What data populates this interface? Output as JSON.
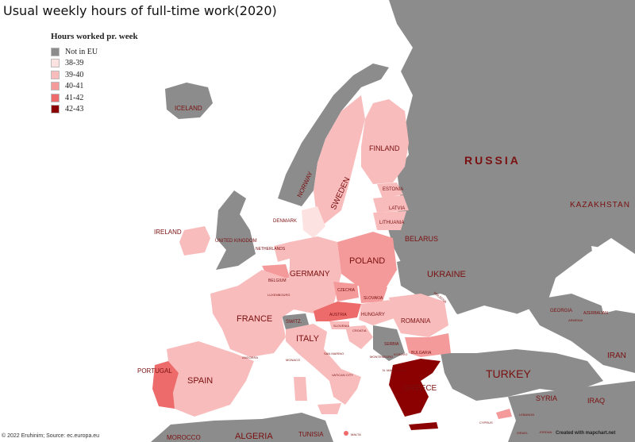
{
  "title": "Usual weekly hours of full-time work(2020)",
  "legend": {
    "title": "Hours worked pr. week",
    "items": [
      {
        "label": "Not in EU",
        "color": "#8c8c8c"
      },
      {
        "label": "38-39",
        "color": "#fde2e2"
      },
      {
        "label": "39-40",
        "color": "#f9bcbc"
      },
      {
        "label": "40-41",
        "color": "#f49a9a"
      },
      {
        "label": "41-42",
        "color": "#ee6b6b"
      },
      {
        "label": "42-43",
        "color": "#8b0000"
      }
    ]
  },
  "credits": {
    "source": "© 2022 Eruhinim; Source: ec.europa.eu",
    "creator": "Created with mapchart.net"
  },
  "labels": {
    "russia": "RUSSIA",
    "kazakhstan": "KAZAKHSTAN",
    "iceland": "ICELAND",
    "norway": "NORWAY",
    "sweden": "SWEDEN",
    "finland": "FINLAND",
    "estonia": "ESTONIA",
    "latvia": "LATVIA",
    "lithuania": "LITHUANIA",
    "denmark": "DENMARK",
    "ireland": "IRELAND",
    "uk": "UNITED KINGDOM",
    "netherlands": "NETHERLANDS",
    "belarus": "BELARUS",
    "poland": "POLAND",
    "germany": "GERMANY",
    "belgium": "BELGIUM",
    "luxembourg": "LUXEMBOURG",
    "czechia": "CZECHIA",
    "slovakia": "SLOVAKIA",
    "ukraine": "UKRAINE",
    "moldova": "MOLDOVA",
    "austria": "AUSTRIA",
    "hungary": "HUNGARY",
    "romania": "ROMANIA",
    "france": "FRANCE",
    "switzerland": "SWITZ.",
    "slovenia": "SLOVENIA",
    "croatia": "CROATIA",
    "serbia": "SERBIA",
    "italy": "ITALY",
    "bulgaria": "BULGARIA",
    "georgia": "GEORGIA",
    "armenia": "ARMENIA",
    "azerbaijan": "AZERBAIJAN",
    "san_marino": "SAN MARINO",
    "monaco": "MONACO",
    "andorra": "ANDORRA",
    "montenegro": "MONTENEGRO",
    "kosovo": "KOSOVO",
    "macedonia": "N. MACEDONIA",
    "vatican": "VATICAN CITY",
    "turkey": "TURKEY",
    "iran": "IRAN",
    "portugal": "PORTUGAL",
    "spain": "SPAIN",
    "greece": "GREECE",
    "cyprus": "CYPRUS",
    "lebanon": "LEBANON",
    "israel": "ISRAEL",
    "jordan": "JORDAN",
    "syria": "SYRIA",
    "iraq": "IRAQ",
    "morocco": "MOROCCO",
    "algeria": "ALGERIA",
    "tunisia": "TUNISIA",
    "malta": "MALTA"
  },
  "countries": {
    "iceland": "Not in EU",
    "norway": "Not in EU",
    "united_kingdom": "Not in EU",
    "switzerland": "Not in EU",
    "russia": "Not in EU",
    "ukraine": "Not in EU",
    "belarus": "Not in EU",
    "turkey": "Not in EU",
    "serbia": "Not in EU",
    "sweden": "39-40",
    "finland": "39-40",
    "estonia": "39-40",
    "latvia": "39-40",
    "lithuania": "39-40",
    "denmark": "38-39",
    "ireland": "39-40",
    "netherlands": "39-40",
    "germany": "39-40",
    "belgium": "40-41",
    "luxembourg": "39-40",
    "france": "39-40",
    "italy": "39-40",
    "spain": "39-40",
    "slovakia": "40-41",
    "hungary": "39-40",
    "romania": "39-40",
    "slovenia": "39-40",
    "croatia": "39-40",
    "bulgaria": "40-41",
    "cyprus": "40-41",
    "malta": "41-42",
    "poland": "40-41",
    "czechia": "40-41",
    "portugal": "41-42",
    "austria": "41-42",
    "greece": "42-43"
  }
}
